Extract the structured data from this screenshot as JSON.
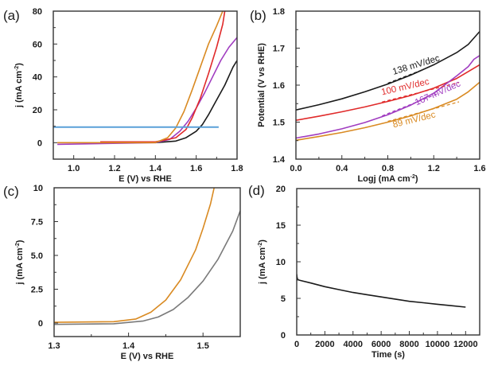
{
  "chart_data": [
    {
      "panel": "(a)",
      "type": "line",
      "xlabel": "E (V) vs RHE",
      "ylabel": "j (mA cm",
      "ylabel_sup": "-2",
      "ylabel_tail": ")",
      "xlim": [
        0.9,
        1.8
      ],
      "ylim": [
        -10,
        80
      ],
      "xticks": [
        1.0,
        1.2,
        1.4,
        1.6,
        1.8
      ],
      "xtick_labels": [
        "1.0",
        "1.2",
        "1.4",
        "1.6",
        "1.8"
      ],
      "yticks": [
        0,
        20,
        40,
        60,
        80
      ],
      "ytick_labels": [
        "0",
        "20",
        "40",
        "60",
        "80"
      ],
      "series": [
        {
          "name": "black",
          "color": "#1a1a1a",
          "x": [
            1.4,
            1.5,
            1.55,
            1.6,
            1.63,
            1.66,
            1.7,
            1.74,
            1.78,
            1.8
          ],
          "y": [
            0,
            1,
            3,
            7,
            11,
            17,
            26,
            35,
            46,
            50
          ]
        },
        {
          "name": "purple",
          "color": "#a03cc0",
          "x": [
            0.92,
            1.4,
            1.47,
            1.52,
            1.56,
            1.6,
            1.64,
            1.68,
            1.72,
            1.76,
            1.8
          ],
          "y": [
            -1,
            0,
            2,
            7,
            13,
            21,
            30,
            40,
            50,
            58,
            64
          ]
        },
        {
          "name": "red",
          "color": "#e02a2a",
          "x": [
            1.13,
            1.4,
            1.5,
            1.55,
            1.58,
            1.62,
            1.66,
            1.7,
            1.73,
            1.74
          ],
          "y": [
            0.5,
            0.5,
            3,
            8,
            15,
            27,
            42,
            58,
            72,
            80
          ]
        },
        {
          "name": "orange",
          "color": "#d98a22",
          "x": [
            0.92,
            1.4,
            1.46,
            1.5,
            1.54,
            1.58,
            1.62,
            1.66,
            1.7,
            1.73
          ],
          "y": [
            0,
            0,
            3,
            9,
            19,
            32,
            46,
            60,
            71,
            80
          ]
        },
        {
          "name": "blue-reference",
          "color": "#5aa0d8",
          "x": [
            0.9,
            1.71
          ],
          "y": [
            9.5,
            9.5
          ]
        }
      ]
    },
    {
      "panel": "(b)",
      "type": "line",
      "xlabel": "Logj (mA cm",
      "xlabel_sup": "-2",
      "xlabel_tail": ")",
      "ylabel": "Potential (V vs RHE)",
      "xlim": [
        0.0,
        1.6
      ],
      "ylim": [
        1.4,
        1.8
      ],
      "xticks": [
        0.0,
        0.4,
        0.8,
        1.2,
        1.6
      ],
      "xtick_labels": [
        "0.0",
        "0.4",
        "0.8",
        "1.2",
        "1.6"
      ],
      "yticks": [
        1.4,
        1.5,
        1.6,
        1.7,
        1.8
      ],
      "ytick_labels": [
        "1.4",
        "1.5",
        "1.6",
        "1.7",
        "1.8"
      ],
      "series": [
        {
          "name": "black",
          "color": "#1a1a1a",
          "x": [
            0.0,
            0.2,
            0.4,
            0.6,
            0.8,
            1.0,
            1.2,
            1.4,
            1.5,
            1.6
          ],
          "y": [
            1.533,
            1.547,
            1.563,
            1.582,
            1.603,
            1.627,
            1.655,
            1.688,
            1.71,
            1.745
          ],
          "annotation": "138 mV/dec"
        },
        {
          "name": "red",
          "color": "#e02a2a",
          "x": [
            0.0,
            0.2,
            0.4,
            0.6,
            0.8,
            1.0,
            1.2,
            1.4,
            1.6
          ],
          "y": [
            1.505,
            1.516,
            1.528,
            1.541,
            1.556,
            1.572,
            1.592,
            1.618,
            1.655
          ],
          "annotation": "100 mV/dec"
        },
        {
          "name": "purple",
          "color": "#a03cc0",
          "x": [
            0.0,
            0.2,
            0.4,
            0.6,
            0.8,
            1.0,
            1.2,
            1.4,
            1.5,
            1.55,
            1.6
          ],
          "y": [
            1.457,
            1.468,
            1.482,
            1.499,
            1.52,
            1.546,
            1.578,
            1.625,
            1.65,
            1.67,
            1.68
          ],
          "annotation": "167 mV/dec"
        },
        {
          "name": "orange",
          "color": "#d98a22",
          "x": [
            0.0,
            0.2,
            0.4,
            0.6,
            0.8,
            1.0,
            1.2,
            1.4,
            1.5,
            1.6
          ],
          "y": [
            1.451,
            1.461,
            1.472,
            1.485,
            1.5,
            1.517,
            1.537,
            1.562,
            1.582,
            1.608
          ],
          "annotation": "89 mV/dec"
        }
      ]
    },
    {
      "panel": "(c)",
      "type": "line",
      "xlabel": "E (V) vs RHE",
      "ylabel": "j (mA cm",
      "ylabel_sup": "-2",
      "ylabel_tail": ")",
      "xlim": [
        1.3,
        1.55
      ],
      "ylim": [
        -1.0,
        10
      ],
      "xticks": [
        1.3,
        1.4,
        1.5
      ],
      "xtick_labels": [
        "1.3",
        "1.4",
        "1.5"
      ],
      "yticks": [
        0,
        2.5,
        5.0,
        7.5,
        10
      ],
      "ytick_labels": [
        "0",
        "2.5",
        "5.0",
        "7.5",
        "10"
      ],
      "series": [
        {
          "name": "gray",
          "color": "#7a7a7a",
          "x": [
            1.3,
            1.38,
            1.42,
            1.44,
            1.46,
            1.48,
            1.5,
            1.52,
            1.54,
            1.55
          ],
          "y": [
            -0.1,
            -0.05,
            0.15,
            0.45,
            1.0,
            1.9,
            3.1,
            4.7,
            6.8,
            8.3
          ]
        },
        {
          "name": "orange",
          "color": "#d98a22",
          "x": [
            1.3,
            1.38,
            1.41,
            1.43,
            1.45,
            1.47,
            1.49,
            1.5,
            1.51,
            1.515
          ],
          "y": [
            0.05,
            0.1,
            0.3,
            0.8,
            1.7,
            3.2,
            5.4,
            7.0,
            8.8,
            10
          ]
        }
      ]
    },
    {
      "panel": "(d)",
      "type": "line",
      "xlabel": "Time (s)",
      "ylabel": "j (mA cm",
      "ylabel_sup": "-2",
      "ylabel_tail": ")",
      "xlim": [
        0,
        13000
      ],
      "ylim": [
        0,
        20
      ],
      "xticks": [
        0,
        2000,
        4000,
        6000,
        8000,
        10000,
        12000
      ],
      "xtick_labels": [
        "0",
        "2000",
        "4000",
        "6000",
        "8000",
        "10000",
        "12000"
      ],
      "yticks": [
        0,
        5,
        10,
        15,
        20
      ],
      "ytick_labels": [
        "0",
        "5",
        "10",
        "15",
        "20"
      ],
      "series": [
        {
          "name": "black",
          "color": "#1a1a1a",
          "x": [
            0,
            20,
            60,
            150,
            1000,
            2000,
            3000,
            4000,
            5000,
            6000,
            7000,
            8000,
            9000,
            10000,
            11000,
            12000
          ],
          "y": [
            8.3,
            7.9,
            7.6,
            7.5,
            7.1,
            6.6,
            6.2,
            5.8,
            5.5,
            5.2,
            4.9,
            4.6,
            4.4,
            4.2,
            4.0,
            3.8
          ]
        }
      ]
    }
  ]
}
